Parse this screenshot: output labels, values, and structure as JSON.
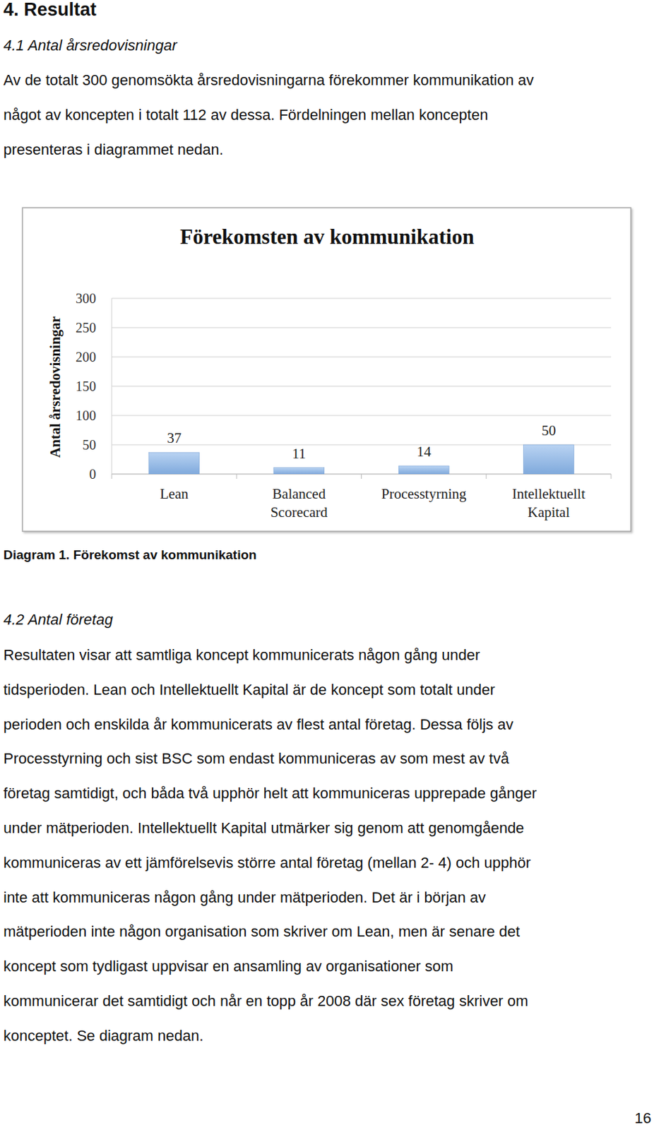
{
  "heading": "4. Resultat",
  "sections": [
    {
      "title": "4.1 Antal årsredovisningar",
      "lines": [
        "Av de totalt 300 genomsökta årsredovisningarna förekommer kommunikation av",
        "något av koncepten i totalt 112 av dessa. Fördelningen mellan koncepten",
        "presenteras i diagrammet nedan."
      ]
    },
    {
      "title": "4.2 Antal företag",
      "lines": [
        "Resultaten visar att samtliga koncept kommunicerats någon gång under",
        "tidsperioden. Lean och Intellektuellt Kapital är de koncept som totalt under",
        "perioden och enskilda år kommunicerats av flest antal företag. Dessa följs av",
        "Processtyrning och sist BSC som endast kommuniceras av som mest av två",
        "företag samtidigt, och båda två upphör helt att kommuniceras upprepade gånger",
        "under mätperioden. Intellektuellt Kapital utmärker sig genom att genomgående",
        "kommuniceras av ett jämförelsevis större antal företag (mellan 2- 4) och upphör",
        "inte att kommuniceras någon gång under mätperioden. Det är i början av",
        "mätperioden inte någon organisation som skriver om Lean, men är senare det",
        "koncept som tydligast uppvisar en ansamling av organisationer som",
        "kommunicerar det samtidigt och når en topp år 2008 där sex företag skriver om",
        "konceptet. Se diagram nedan."
      ]
    }
  ],
  "chart_data": {
    "type": "bar",
    "title": "Förekomsten av kommunikation",
    "y_label": "Antal årsredovisningar",
    "categories": [
      "Lean",
      "Balanced Scorecard",
      "Processtyrning",
      "Intellektuellt Kapital"
    ],
    "values": [
      37,
      11,
      14,
      50
    ],
    "color": "#7fa9dc",
    "ylim": [
      0,
      300
    ],
    "yticks": [
      0,
      50,
      100,
      150,
      200,
      250,
      300
    ],
    "grid": true,
    "data_labels": true
  },
  "caption": "Diagram 1. Förekomst av kommunikation",
  "page_number": "16"
}
